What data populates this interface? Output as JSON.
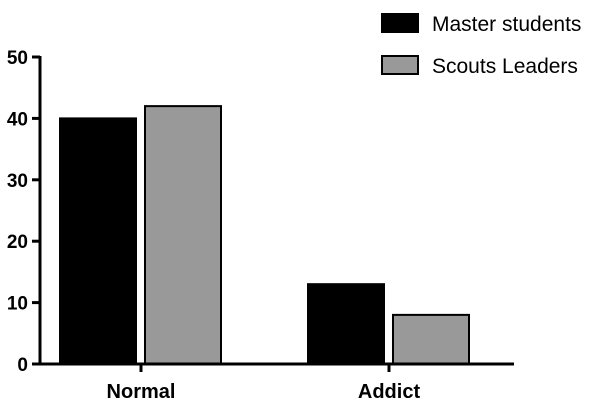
{
  "chart_data": {
    "type": "bar",
    "categories": [
      "Normal",
      "Addict"
    ],
    "series": [
      {
        "name": "Master students",
        "values": [
          40,
          13
        ],
        "color": "#000000"
      },
      {
        "name": "Scouts Leaders",
        "values": [
          42,
          8
        ],
        "color": "#999999"
      }
    ],
    "ylim": [
      0,
      50
    ],
    "yticks": [
      "0",
      "10",
      "20",
      "30",
      "40",
      "50"
    ],
    "grid": false,
    "legend": "top-right"
  }
}
